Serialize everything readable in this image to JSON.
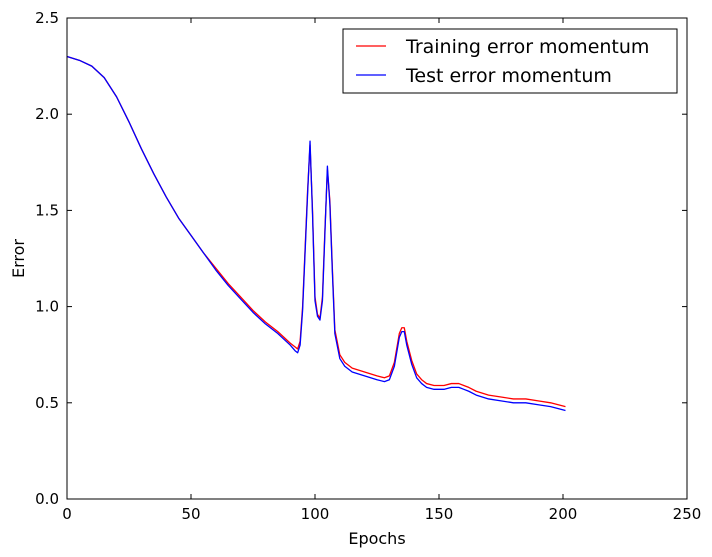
{
  "chart_data": {
    "type": "line",
    "title": "",
    "xlabel": "Epochs",
    "ylabel": "Error",
    "xlim": [
      0,
      250
    ],
    "ylim": [
      0.0,
      2.5
    ],
    "xticks": [
      0,
      50,
      100,
      150,
      200,
      250
    ],
    "xtick_labels": [
      "0",
      "50",
      "100",
      "150",
      "200",
      "250"
    ],
    "yticks": [
      0.0,
      0.5,
      1.0,
      1.5,
      2.0,
      2.5
    ],
    "ytick_labels": [
      "0.0",
      "0.5",
      "1.0",
      "1.5",
      "2.0",
      "2.5"
    ],
    "grid": false,
    "legend_position": "top-right",
    "series": [
      {
        "name": "Training error momentum",
        "color": "#ff0000",
        "points": [
          [
            0,
            2.3
          ],
          [
            5,
            2.28
          ],
          [
            10,
            2.25
          ],
          [
            15,
            2.19
          ],
          [
            20,
            2.09
          ],
          [
            25,
            1.96
          ],
          [
            30,
            1.82
          ],
          [
            35,
            1.69
          ],
          [
            40,
            1.57
          ],
          [
            45,
            1.46
          ],
          [
            50,
            1.37
          ],
          [
            55,
            1.28
          ],
          [
            60,
            1.2
          ],
          [
            65,
            1.12
          ],
          [
            70,
            1.05
          ],
          [
            75,
            0.98
          ],
          [
            80,
            0.92
          ],
          [
            85,
            0.87
          ],
          [
            90,
            0.81
          ],
          [
            92,
            0.79
          ],
          [
            93,
            0.78
          ],
          [
            94,
            0.82
          ],
          [
            95,
            1.0
          ],
          [
            96,
            1.3
          ],
          [
            97,
            1.6
          ],
          [
            98,
            1.84
          ],
          [
            99,
            1.5
          ],
          [
            100,
            1.05
          ],
          [
            101,
            0.96
          ],
          [
            102,
            0.94
          ],
          [
            103,
            1.05
          ],
          [
            104,
            1.4
          ],
          [
            105,
            1.71
          ],
          [
            106,
            1.55
          ],
          [
            107,
            1.2
          ],
          [
            108,
            0.88
          ],
          [
            110,
            0.75
          ],
          [
            112,
            0.71
          ],
          [
            115,
            0.68
          ],
          [
            120,
            0.66
          ],
          [
            125,
            0.64
          ],
          [
            128,
            0.63
          ],
          [
            130,
            0.64
          ],
          [
            132,
            0.71
          ],
          [
            134,
            0.86
          ],
          [
            135,
            0.89
          ],
          [
            136,
            0.89
          ],
          [
            137,
            0.82
          ],
          [
            139,
            0.72
          ],
          [
            141,
            0.65
          ],
          [
            143,
            0.62
          ],
          [
            145,
            0.6
          ],
          [
            148,
            0.59
          ],
          [
            150,
            0.59
          ],
          [
            152,
            0.59
          ],
          [
            155,
            0.6
          ],
          [
            158,
            0.6
          ],
          [
            160,
            0.59
          ],
          [
            162,
            0.58
          ],
          [
            165,
            0.56
          ],
          [
            170,
            0.54
          ],
          [
            175,
            0.53
          ],
          [
            180,
            0.52
          ],
          [
            185,
            0.52
          ],
          [
            190,
            0.51
          ],
          [
            195,
            0.5
          ],
          [
            201,
            0.48
          ]
        ]
      },
      {
        "name": "Test error momentum",
        "color": "#0000ff",
        "points": [
          [
            0,
            2.3
          ],
          [
            5,
            2.28
          ],
          [
            10,
            2.25
          ],
          [
            15,
            2.19
          ],
          [
            20,
            2.09
          ],
          [
            25,
            1.96
          ],
          [
            30,
            1.82
          ],
          [
            35,
            1.69
          ],
          [
            40,
            1.57
          ],
          [
            45,
            1.46
          ],
          [
            50,
            1.37
          ],
          [
            55,
            1.28
          ],
          [
            60,
            1.19
          ],
          [
            65,
            1.11
          ],
          [
            70,
            1.04
          ],
          [
            75,
            0.97
          ],
          [
            80,
            0.91
          ],
          [
            85,
            0.86
          ],
          [
            90,
            0.8
          ],
          [
            92,
            0.77
          ],
          [
            93,
            0.76
          ],
          [
            94,
            0.8
          ],
          [
            95,
            0.98
          ],
          [
            96,
            1.28
          ],
          [
            97,
            1.58
          ],
          [
            98,
            1.86
          ],
          [
            99,
            1.48
          ],
          [
            100,
            1.03
          ],
          [
            101,
            0.95
          ],
          [
            102,
            0.93
          ],
          [
            103,
            1.03
          ],
          [
            104,
            1.38
          ],
          [
            105,
            1.73
          ],
          [
            106,
            1.53
          ],
          [
            107,
            1.18
          ],
          [
            108,
            0.86
          ],
          [
            110,
            0.73
          ],
          [
            112,
            0.69
          ],
          [
            115,
            0.66
          ],
          [
            120,
            0.64
          ],
          [
            125,
            0.62
          ],
          [
            128,
            0.61
          ],
          [
            130,
            0.62
          ],
          [
            132,
            0.69
          ],
          [
            134,
            0.84
          ],
          [
            135,
            0.87
          ],
          [
            136,
            0.87
          ],
          [
            137,
            0.8
          ],
          [
            139,
            0.7
          ],
          [
            141,
            0.63
          ],
          [
            143,
            0.6
          ],
          [
            145,
            0.58
          ],
          [
            148,
            0.57
          ],
          [
            150,
            0.57
          ],
          [
            152,
            0.57
          ],
          [
            155,
            0.58
          ],
          [
            158,
            0.58
          ],
          [
            160,
            0.57
          ],
          [
            162,
            0.56
          ],
          [
            165,
            0.54
          ],
          [
            170,
            0.52
          ],
          [
            175,
            0.51
          ],
          [
            180,
            0.5
          ],
          [
            185,
            0.5
          ],
          [
            190,
            0.49
          ],
          [
            195,
            0.48
          ],
          [
            201,
            0.46
          ]
        ]
      }
    ]
  }
}
